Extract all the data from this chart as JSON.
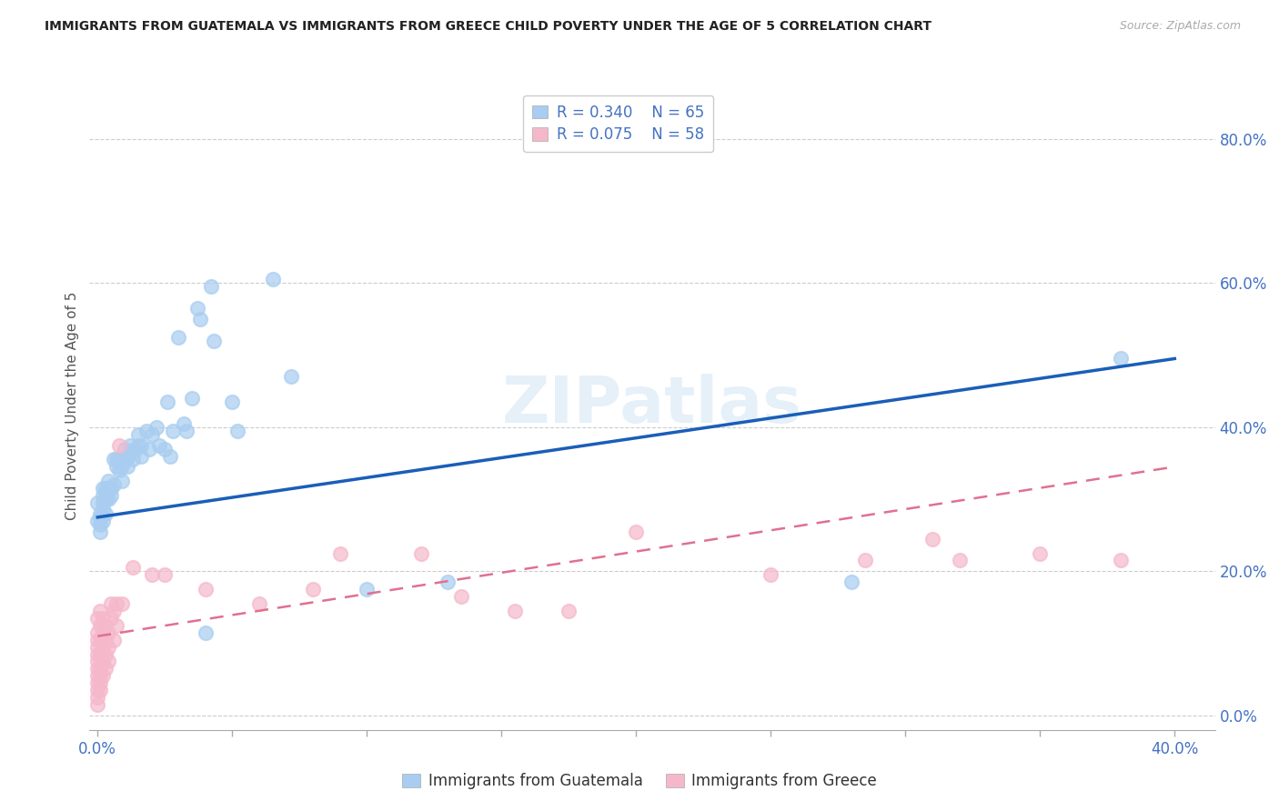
{
  "title": "IMMIGRANTS FROM GUATEMALA VS IMMIGRANTS FROM GREECE CHILD POVERTY UNDER THE AGE OF 5 CORRELATION CHART",
  "source": "Source: ZipAtlas.com",
  "ylabel": "Child Poverty Under the Age of 5",
  "xlim": [
    -0.003,
    0.415
  ],
  "ylim": [
    -0.02,
    0.88
  ],
  "xticks": [
    0.0,
    0.05,
    0.1,
    0.15,
    0.2,
    0.25,
    0.3,
    0.35,
    0.4
  ],
  "xtick_labels": [
    "0.0%",
    "",
    "",
    "",
    "",
    "",
    "",
    "",
    "40.0%"
  ],
  "yticks": [
    0.0,
    0.2,
    0.4,
    0.6,
    0.8
  ],
  "ytick_labels_right": [
    "0.0%",
    "20.0%",
    "40.0%",
    "60.0%",
    "80.0%"
  ],
  "legend_r1": "R = 0.340",
  "legend_n1": "N = 65",
  "legend_r2": "R = 0.075",
  "legend_n2": "N = 58",
  "color_guatemala": "#a8cdf0",
  "color_greece": "#f5b8cb",
  "color_line_guatemala": "#1a5eb8",
  "color_line_greece": "#e07090",
  "label_guatemala": "Immigrants from Guatemala",
  "label_greece": "Immigrants from Greece",
  "guatemala_points": [
    [
      0.0,
      0.27
    ],
    [
      0.0,
      0.295
    ],
    [
      0.001,
      0.255
    ],
    [
      0.001,
      0.265
    ],
    [
      0.001,
      0.275
    ],
    [
      0.001,
      0.28
    ],
    [
      0.002,
      0.27
    ],
    [
      0.002,
      0.285
    ],
    [
      0.002,
      0.295
    ],
    [
      0.002,
      0.305
    ],
    [
      0.002,
      0.315
    ],
    [
      0.003,
      0.28
    ],
    [
      0.003,
      0.3
    ],
    [
      0.003,
      0.315
    ],
    [
      0.004,
      0.3
    ],
    [
      0.004,
      0.315
    ],
    [
      0.004,
      0.325
    ],
    [
      0.005,
      0.305
    ],
    [
      0.005,
      0.315
    ],
    [
      0.006,
      0.32
    ],
    [
      0.006,
      0.355
    ],
    [
      0.007,
      0.345
    ],
    [
      0.007,
      0.355
    ],
    [
      0.008,
      0.34
    ],
    [
      0.008,
      0.355
    ],
    [
      0.009,
      0.325
    ],
    [
      0.009,
      0.345
    ],
    [
      0.01,
      0.355
    ],
    [
      0.01,
      0.37
    ],
    [
      0.011,
      0.36
    ],
    [
      0.011,
      0.345
    ],
    [
      0.012,
      0.365
    ],
    [
      0.012,
      0.375
    ],
    [
      0.013,
      0.355
    ],
    [
      0.014,
      0.37
    ],
    [
      0.015,
      0.375
    ],
    [
      0.015,
      0.39
    ],
    [
      0.016,
      0.36
    ],
    [
      0.016,
      0.375
    ],
    [
      0.018,
      0.395
    ],
    [
      0.019,
      0.37
    ],
    [
      0.02,
      0.39
    ],
    [
      0.022,
      0.4
    ],
    [
      0.023,
      0.375
    ],
    [
      0.025,
      0.37
    ],
    [
      0.026,
      0.435
    ],
    [
      0.027,
      0.36
    ],
    [
      0.028,
      0.395
    ],
    [
      0.03,
      0.525
    ],
    [
      0.032,
      0.405
    ],
    [
      0.033,
      0.395
    ],
    [
      0.035,
      0.44
    ],
    [
      0.037,
      0.565
    ],
    [
      0.038,
      0.55
    ],
    [
      0.042,
      0.595
    ],
    [
      0.043,
      0.52
    ],
    [
      0.05,
      0.435
    ],
    [
      0.052,
      0.395
    ],
    [
      0.065,
      0.605
    ],
    [
      0.072,
      0.47
    ],
    [
      0.13,
      0.185
    ],
    [
      0.28,
      0.185
    ],
    [
      0.38,
      0.495
    ],
    [
      0.04,
      0.115
    ],
    [
      0.1,
      0.175
    ]
  ],
  "greece_points": [
    [
      0.0,
      0.135
    ],
    [
      0.0,
      0.115
    ],
    [
      0.0,
      0.105
    ],
    [
      0.0,
      0.095
    ],
    [
      0.0,
      0.085
    ],
    [
      0.0,
      0.075
    ],
    [
      0.0,
      0.065
    ],
    [
      0.0,
      0.055
    ],
    [
      0.0,
      0.045
    ],
    [
      0.0,
      0.035
    ],
    [
      0.0,
      0.025
    ],
    [
      0.0,
      0.015
    ],
    [
      0.001,
      0.145
    ],
    [
      0.001,
      0.125
    ],
    [
      0.001,
      0.105
    ],
    [
      0.001,
      0.085
    ],
    [
      0.001,
      0.065
    ],
    [
      0.001,
      0.055
    ],
    [
      0.001,
      0.045
    ],
    [
      0.001,
      0.035
    ],
    [
      0.002,
      0.135
    ],
    [
      0.002,
      0.115
    ],
    [
      0.002,
      0.095
    ],
    [
      0.002,
      0.075
    ],
    [
      0.002,
      0.055
    ],
    [
      0.003,
      0.125
    ],
    [
      0.003,
      0.105
    ],
    [
      0.003,
      0.085
    ],
    [
      0.003,
      0.065
    ],
    [
      0.004,
      0.115
    ],
    [
      0.004,
      0.095
    ],
    [
      0.004,
      0.075
    ],
    [
      0.005,
      0.155
    ],
    [
      0.005,
      0.135
    ],
    [
      0.006,
      0.145
    ],
    [
      0.006,
      0.105
    ],
    [
      0.007,
      0.155
    ],
    [
      0.007,
      0.125
    ],
    [
      0.008,
      0.375
    ],
    [
      0.009,
      0.155
    ],
    [
      0.013,
      0.205
    ],
    [
      0.02,
      0.195
    ],
    [
      0.025,
      0.195
    ],
    [
      0.04,
      0.175
    ],
    [
      0.08,
      0.175
    ],
    [
      0.12,
      0.225
    ],
    [
      0.155,
      0.145
    ],
    [
      0.2,
      0.255
    ],
    [
      0.25,
      0.195
    ],
    [
      0.31,
      0.245
    ],
    [
      0.32,
      0.215
    ],
    [
      0.35,
      0.225
    ],
    [
      0.38,
      0.215
    ],
    [
      0.06,
      0.155
    ],
    [
      0.09,
      0.225
    ],
    [
      0.135,
      0.165
    ],
    [
      0.175,
      0.145
    ],
    [
      0.285,
      0.215
    ]
  ],
  "guat_line_x": [
    0.0,
    0.4
  ],
  "guat_line_y": [
    0.275,
    0.495
  ],
  "greece_line_x": [
    0.0,
    0.4
  ],
  "greece_line_y": [
    0.11,
    0.345
  ],
  "background_color": "#ffffff",
  "grid_color": "#cccccc"
}
